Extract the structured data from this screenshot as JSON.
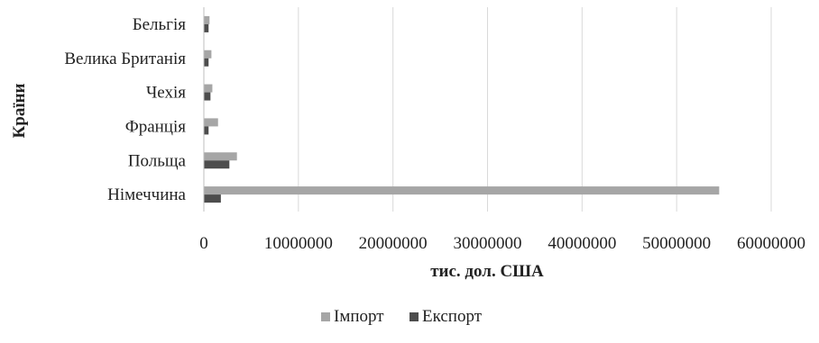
{
  "chart_data": {
    "type": "bar",
    "orientation": "horizontal",
    "categories": [
      "Бельгія",
      "Велика Британія",
      "Чехія",
      "Франція",
      "Польща",
      "Німеччина"
    ],
    "series": [
      {
        "name": "Імпорт",
        "values": [
          600000,
          800000,
          900000,
          1500000,
          3500000,
          54500000
        ],
        "color": "#a6a6a6"
      },
      {
        "name": "Експорт",
        "values": [
          500000,
          500000,
          700000,
          500000,
          2700000,
          1800000
        ],
        "color": "#4d4d4d"
      }
    ],
    "xlabel": "тис. дол. США",
    "ylabel": "Країни",
    "xlim": [
      0,
      60000000
    ],
    "x_ticks": [
      "0",
      "10000000",
      "20000000",
      "30000000",
      "40000000",
      "50000000",
      "60000000"
    ],
    "grid": "vertical",
    "legend_position": "bottom"
  }
}
